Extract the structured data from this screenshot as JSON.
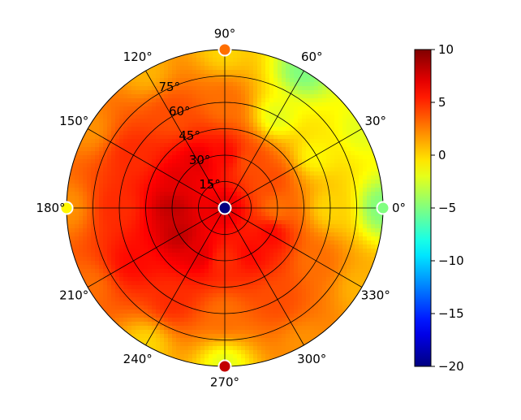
{
  "chart_data": {
    "type": "heatmap",
    "projection": "polar",
    "title": "",
    "angle_ticks": [
      {
        "deg": 0,
        "label": "0°"
      },
      {
        "deg": 30,
        "label": "30°"
      },
      {
        "deg": 60,
        "label": "60°"
      },
      {
        "deg": 90,
        "label": "90°"
      },
      {
        "deg": 120,
        "label": "120°"
      },
      {
        "deg": 150,
        "label": "150°"
      },
      {
        "deg": 180,
        "label": "180°"
      },
      {
        "deg": 210,
        "label": "210°"
      },
      {
        "deg": 240,
        "label": "240°"
      },
      {
        "deg": 270,
        "label": "270°"
      },
      {
        "deg": 300,
        "label": "300°"
      },
      {
        "deg": 330,
        "label": "330°"
      }
    ],
    "radial_ticks": [
      {
        "value": 15,
        "label": "15°"
      },
      {
        "value": 30,
        "label": "30°"
      },
      {
        "value": 45,
        "label": "45°"
      },
      {
        "value": 60,
        "label": "60°"
      },
      {
        "value": 75,
        "label": "75°"
      }
    ],
    "radial_range": [
      0,
      90
    ],
    "radial_axis_direction": "outward",
    "grid": true,
    "colormap": "jet",
    "colorbar": {
      "range": [
        -20,
        10
      ],
      "ticks": [
        {
          "value": 10,
          "label": "10"
        },
        {
          "value": 5,
          "label": "5"
        },
        {
          "value": 0,
          "label": "0"
        },
        {
          "value": -5,
          "label": "−5"
        },
        {
          "value": -10,
          "label": "−10"
        },
        {
          "value": -15,
          "label": "−15"
        },
        {
          "value": -20,
          "label": "−20"
        }
      ],
      "placement": "right"
    },
    "field_samples": [
      {
        "az": 0,
        "el": 0,
        "value": 7
      },
      {
        "az": 0,
        "el": 30,
        "value": 3
      },
      {
        "az": 0,
        "el": 60,
        "value": 0
      },
      {
        "az": 0,
        "el": 90,
        "value": -5
      },
      {
        "az": 30,
        "el": 30,
        "value": 4
      },
      {
        "az": 30,
        "el": 60,
        "value": -1
      },
      {
        "az": 30,
        "el": 90,
        "value": -2
      },
      {
        "az": 60,
        "el": 30,
        "value": 4
      },
      {
        "az": 60,
        "el": 60,
        "value": -2
      },
      {
        "az": 60,
        "el": 90,
        "value": -5
      },
      {
        "az": 90,
        "el": 30,
        "value": 6
      },
      {
        "az": 90,
        "el": 60,
        "value": 3
      },
      {
        "az": 90,
        "el": 90,
        "value": 0
      },
      {
        "az": 120,
        "el": 30,
        "value": 7
      },
      {
        "az": 120,
        "el": 60,
        "value": 4
      },
      {
        "az": 120,
        "el": 90,
        "value": 1
      },
      {
        "az": 150,
        "el": 30,
        "value": 7
      },
      {
        "az": 150,
        "el": 60,
        "value": 5
      },
      {
        "az": 150,
        "el": 90,
        "value": 2
      },
      {
        "az": 180,
        "el": 30,
        "value": 8
      },
      {
        "az": 180,
        "el": 60,
        "value": 5
      },
      {
        "az": 180,
        "el": 90,
        "value": 2
      },
      {
        "az": 210,
        "el": 30,
        "value": 8
      },
      {
        "az": 210,
        "el": 60,
        "value": 6
      },
      {
        "az": 210,
        "el": 90,
        "value": 3
      },
      {
        "az": 240,
        "el": 30,
        "value": 7
      },
      {
        "az": 240,
        "el": 60,
        "value": 5
      },
      {
        "az": 240,
        "el": 90,
        "value": 0
      },
      {
        "az": 270,
        "el": 30,
        "value": 5
      },
      {
        "az": 270,
        "el": 60,
        "value": 3
      },
      {
        "az": 270,
        "el": 90,
        "value": -2
      },
      {
        "az": 300,
        "el": 30,
        "value": 6
      },
      {
        "az": 300,
        "el": 60,
        "value": 4
      },
      {
        "az": 300,
        "el": 90,
        "value": 2
      },
      {
        "az": 330,
        "el": 30,
        "value": 6
      },
      {
        "az": 330,
        "el": 60,
        "value": 3
      },
      {
        "az": 330,
        "el": 90,
        "value": 1
      }
    ],
    "markers": [
      {
        "az": 0,
        "el": 0,
        "value": -20,
        "name": "center"
      },
      {
        "az": 0,
        "el": 90,
        "value": -5
      },
      {
        "az": 90,
        "el": 90,
        "value": 3
      },
      {
        "az": 180,
        "el": 90,
        "value": -1
      },
      {
        "az": 270,
        "el": 90,
        "value": 8
      }
    ]
  }
}
